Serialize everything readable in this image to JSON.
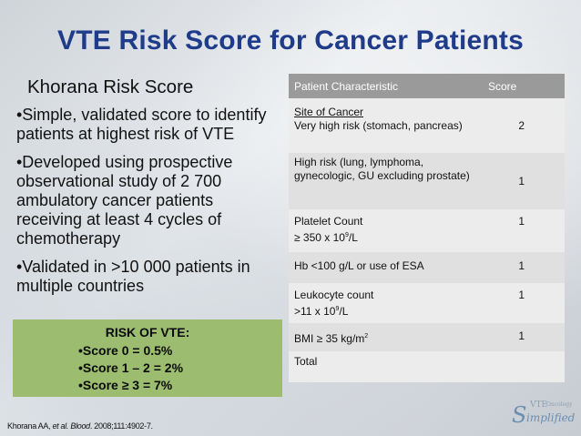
{
  "title": "VTE Risk Score for Cancer Patients",
  "left": {
    "heading": "Khorana Risk Score",
    "bullets": [
      "•Simple, validated score to identify patients at highest risk of VTE",
      "•Developed using prospective observational study of 2 700 ambulatory cancer patients receiving at least 4 cycles of chemotherapy",
      "•Validated in >10 000 patients in multiple countries"
    ]
  },
  "risk": {
    "title": "RISK OF VTE:",
    "lines": [
      "•Score 0 = 0.5%",
      "•Score 1 – 2 = 2%",
      "•Score ≥ 3 = 7%"
    ]
  },
  "citation": {
    "authors": "Khorana AA, ",
    "etal": "et al. Blood",
    "rest": ". 2008;111:4902-7."
  },
  "table": {
    "headers": [
      "Patient Characteristic",
      "Score"
    ],
    "rows": [
      {
        "label": "Site of Cancer",
        "text": "Very high risk (stomach, pancreas)",
        "score": "2"
      },
      {
        "text": "High risk (lung, lymphoma, gynecologic, GU excluding prostate)",
        "score": "1"
      },
      {
        "label": "Platelet Count",
        "text": "≥ 350 x 10",
        "sup": "9",
        "tail": "/L",
        "score": "1"
      },
      {
        "text": "Hb <100 g/L or use of ESA",
        "score": "1"
      },
      {
        "label": "Leukocyte count",
        "text": ">11 x 10",
        "sup": "9",
        "tail": "/L",
        "score": "1"
      },
      {
        "text": "BMI ≥ 35 kg/m",
        "sup": "2",
        "score": "1"
      },
      {
        "text": "Total",
        "score": ""
      }
    ]
  },
  "logo": {
    "big": "S",
    "rest": "implified",
    "vte": "VTE",
    "onc": "Oncology"
  }
}
